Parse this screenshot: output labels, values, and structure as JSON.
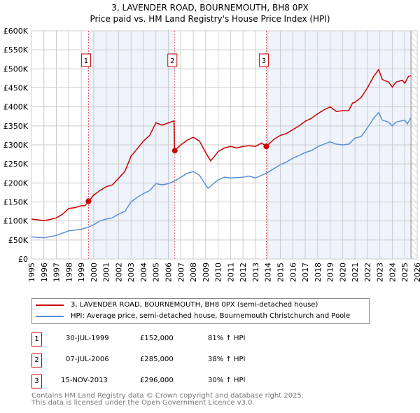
{
  "chart_data": {
    "type": "line",
    "title": "3, LAVENDER ROAD, BOURNEMOUTH, BH8 0PX",
    "subtitle": "Price paid vs. HM Land Registry's House Price Index (HPI)",
    "xlim": [
      1995,
      2026
    ],
    "ylim": [
      0,
      600000
    ],
    "x_ticks": [
      "1995",
      "1996",
      "1997",
      "1998",
      "1999",
      "2000",
      "2001",
      "2002",
      "2003",
      "2004",
      "2005",
      "2006",
      "2007",
      "2008",
      "2009",
      "2010",
      "2011",
      "2012",
      "2013",
      "2014",
      "2015",
      "2016",
      "2017",
      "2018",
      "2019",
      "2020",
      "2021",
      "2022",
      "2023",
      "2024",
      "2025",
      "2026"
    ],
    "y_ticks": [
      {
        "v": 0,
        "l": "£0"
      },
      {
        "v": 50000,
        "l": "£50K"
      },
      {
        "v": 100000,
        "l": "£100K"
      },
      {
        "v": 150000,
        "l": "£150K"
      },
      {
        "v": 200000,
        "l": "£200K"
      },
      {
        "v": 250000,
        "l": "£250K"
      },
      {
        "v": 300000,
        "l": "£300K"
      },
      {
        "v": 350000,
        "l": "£350K"
      },
      {
        "v": 400000,
        "l": "£400K"
      },
      {
        "v": 450000,
        "l": "£450K"
      },
      {
        "v": 500000,
        "l": "£500K"
      },
      {
        "v": 550000,
        "l": "£550K"
      },
      {
        "v": 600000,
        "l": "£600K"
      }
    ],
    "grid": true,
    "series": [
      {
        "name": "3, LAVENDER ROAD, BOURNEMOUTH, BH8 0PX (semi-detached house)",
        "color": "#cc0000",
        "x": [
          1995,
          1995.5,
          1996,
          1996.5,
          1997,
          1997.5,
          1998,
          1998.5,
          1999,
          1999.3,
          1999.58,
          2000,
          2000.5,
          2001,
          2001.5,
          2002,
          2002.5,
          2003,
          2003.5,
          2004,
          2004.5,
          2004.8,
          2005,
          2005.5,
          2006,
          2006.45,
          2006.5,
          2007,
          2007.5,
          2008,
          2008.5,
          2009,
          2009.4,
          2010,
          2010.5,
          2011,
          2011.5,
          2012,
          2012.5,
          2013,
          2013.5,
          2013.87,
          2014.5,
          2015,
          2015.5,
          2016,
          2016.5,
          2017,
          2017.5,
          2018,
          2018.5,
          2019,
          2019.5,
          2020,
          2020.5,
          2020.8,
          2021,
          2021.5,
          2022,
          2022.5,
          2022.9,
          2023.2,
          2023.7,
          2024,
          2024.3,
          2024.8,
          2025,
          2025.3,
          2025.5
        ],
        "y": [
          105,
          103,
          101,
          104,
          108,
          118,
          133,
          135,
          140,
          140,
          152,
          168,
          180,
          190,
          195,
          212,
          230,
          270,
          290,
          310,
          325,
          345,
          358,
          352,
          358,
          363,
          285,
          300,
          312,
          320,
          310,
          280,
          258,
          282,
          292,
          296,
          292,
          296,
          298,
          296,
          305,
          296,
          315,
          325,
          330,
          340,
          350,
          362,
          370,
          382,
          392,
          400,
          388,
          390,
          390,
          410,
          412,
          425,
          450,
          480,
          498,
          472,
          465,
          452,
          465,
          470,
          462,
          480,
          482
        ]
      },
      {
        "name": "HPI: Average price, semi-detached house, Bournemouth Christchurch and Poole",
        "color": "#5b8fd4",
        "x": [
          1995,
          1996,
          1997,
          1998,
          1999,
          1999.58,
          2000,
          2000.5,
          2001,
          2001.5,
          2002,
          2002.5,
          2003,
          2003.5,
          2004,
          2004.5,
          2005,
          2005.5,
          2006,
          2006.5,
          2007,
          2007.5,
          2008,
          2008.5,
          2009,
          2009.2,
          2009.7,
          2010,
          2010.5,
          2011,
          2012,
          2012.5,
          2013,
          2013.5,
          2014,
          2014.5,
          2015,
          2015.5,
          2016,
          2016.5,
          2017,
          2017.5,
          2018,
          2018.5,
          2019,
          2019.5,
          2020,
          2020.5,
          2021,
          2021.5,
          2022,
          2022.5,
          2022.9,
          2023.2,
          2023.7,
          2024,
          2024.3,
          2025,
          2025.2,
          2025.5
        ],
        "y": [
          58,
          56,
          62,
          74,
          78,
          84,
          90,
          100,
          105,
          108,
          118,
          125,
          150,
          162,
          172,
          180,
          198,
          195,
          198,
          205,
          215,
          225,
          230,
          220,
          195,
          186,
          200,
          208,
          215,
          213,
          215,
          218,
          213,
          220,
          228,
          238,
          248,
          255,
          265,
          272,
          280,
          285,
          295,
          302,
          308,
          302,
          300,
          302,
          318,
          322,
          345,
          370,
          385,
          365,
          360,
          350,
          360,
          365,
          355,
          372
        ]
      }
    ],
    "y_unit": "thousands GBP",
    "sales": [
      {
        "n": "1",
        "x": 1999.58,
        "date": "30-JUL-1999",
        "price": 152000,
        "price_label": "£152,000",
        "hpi": "81% ↑ HPI"
      },
      {
        "n": "2",
        "x": 2006.52,
        "date": "07-JUL-2006",
        "price": 285000,
        "price_label": "£285,000",
        "hpi": "38% ↑ HPI"
      },
      {
        "n": "3",
        "x": 2013.87,
        "date": "15-NOV-2013",
        "price": 296000,
        "price_label": "£296,000",
        "hpi": "30% ↑ HPI"
      }
    ],
    "forecast_start": 2025.5,
    "legend_position": "below"
  },
  "footer": {
    "line1": "Contains HM Land Registry data © Crown copyright and database right 2025.",
    "line2": "This data is licensed under the Open Government Licence v3.0."
  }
}
